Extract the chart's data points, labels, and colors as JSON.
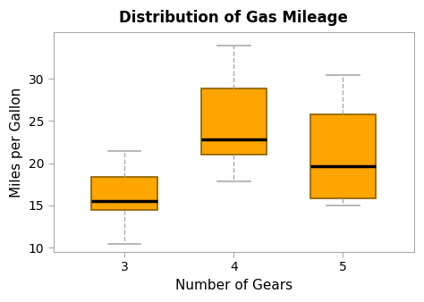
{
  "title": "Distribution of Gas Mileage",
  "xlabel": "Number of Gears",
  "ylabel": "Miles per Gallon",
  "background_color": "#ffffff",
  "box_color": "#FFA500",
  "box_edge_color": "#8B6000",
  "median_color": "#000000",
  "whisker_color": "#aaaaaa",
  "cap_color": "#aaaaaa",
  "spine_color": "#aaaaaa",
  "ylim": [
    9.5,
    35.5
  ],
  "yticks": [
    10,
    15,
    20,
    25,
    30
  ],
  "xtick_labels": [
    "3",
    "4",
    "5"
  ],
  "boxes": [
    {
      "label": "3",
      "whislo": 10.4,
      "q1": 14.5,
      "med": 15.5,
      "q3": 18.4,
      "whishi": 21.5,
      "fliers": []
    },
    {
      "label": "4",
      "whislo": 17.8,
      "q1": 21.0,
      "med": 22.8,
      "q3": 28.85,
      "whishi": 33.9,
      "fliers": []
    },
    {
      "label": "5",
      "whislo": 15.0,
      "q1": 15.8,
      "med": 19.7,
      "q3": 25.8,
      "whishi": 30.4,
      "fliers": []
    }
  ]
}
